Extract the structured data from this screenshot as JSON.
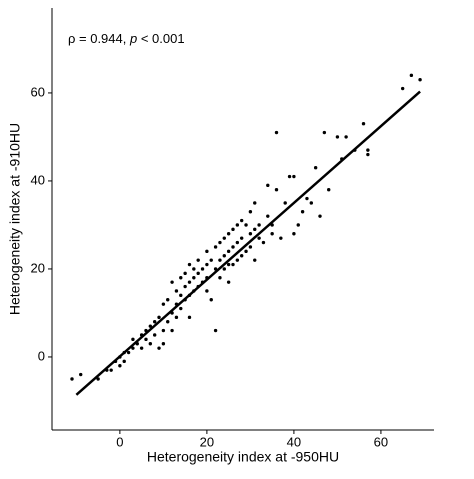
{
  "chart_data": {
    "type": "scatter",
    "annotation": [
      "ρ = 0.944, ",
      "p",
      " < 0.001"
    ],
    "x_label": "Heterogeneity index at -950HU",
    "y_label": "Heterogeneity index at -910HU",
    "x": [
      -11,
      -9,
      -5,
      -3,
      -2,
      -1,
      0,
      0,
      1,
      1,
      2,
      3,
      3,
      4,
      5,
      5,
      6,
      6,
      7,
      7,
      8,
      8,
      9,
      9,
      10,
      10,
      10,
      11,
      11,
      12,
      12,
      12,
      13,
      13,
      13,
      14,
      14,
      14,
      15,
      15,
      15,
      16,
      16,
      16,
      16,
      17,
      17,
      17,
      18,
      18,
      18,
      19,
      19,
      20,
      20,
      20,
      20,
      21,
      21,
      22,
      22,
      22,
      23,
      23,
      23,
      24,
      24,
      24,
      25,
      25,
      25,
      25,
      26,
      26,
      26,
      27,
      27,
      27,
      28,
      28,
      28,
      29,
      29,
      30,
      30,
      30,
      31,
      31,
      31,
      32,
      32,
      33,
      34,
      34,
      35,
      35,
      36,
      36,
      37,
      38,
      39,
      40,
      40,
      41,
      42,
      43,
      44,
      45,
      46,
      47,
      48,
      50,
      51,
      52,
      54,
      56,
      57,
      57,
      65,
      67,
      69
    ],
    "values": [
      -5,
      -4,
      -5,
      -3,
      -3,
      -1,
      -2,
      0,
      -1,
      1,
      1,
      2,
      4,
      3,
      5,
      2,
      6,
      4,
      7,
      3,
      8,
      5,
      9,
      2,
      12,
      6,
      3,
      13,
      8,
      17,
      10,
      6,
      15,
      12,
      9,
      18,
      14,
      11,
      19,
      16,
      13,
      21,
      17,
      14,
      9,
      20,
      18,
      15,
      22,
      19,
      16,
      20,
      17,
      24,
      21,
      18,
      15,
      22,
      13,
      25,
      20,
      6,
      26,
      22,
      18,
      27,
      23,
      20,
      28,
      24,
      21,
      17,
      29,
      25,
      21,
      30,
      26,
      22,
      31,
      27,
      23,
      30,
      24,
      33,
      28,
      25,
      35,
      29,
      22,
      30,
      27,
      26,
      39,
      32,
      30,
      28,
      51,
      38,
      27,
      35,
      41,
      41,
      28,
      30,
      33,
      36,
      35,
      43,
      32,
      51,
      38,
      50,
      45,
      50,
      47,
      53,
      47,
      46,
      61,
      64,
      63
    ],
    "color": "#000000",
    "fit": {
      "x": [
        -10,
        69
      ],
      "y": [
        -8.6,
        60.3
      ],
      "color": "#000000"
    },
    "xlim": [
      -15.6,
      72.2
    ],
    "ylim": [
      -16.6,
      79.3
    ],
    "xticks": [
      0,
      20,
      40,
      60
    ],
    "yticks": [
      0,
      20,
      40,
      60
    ]
  }
}
